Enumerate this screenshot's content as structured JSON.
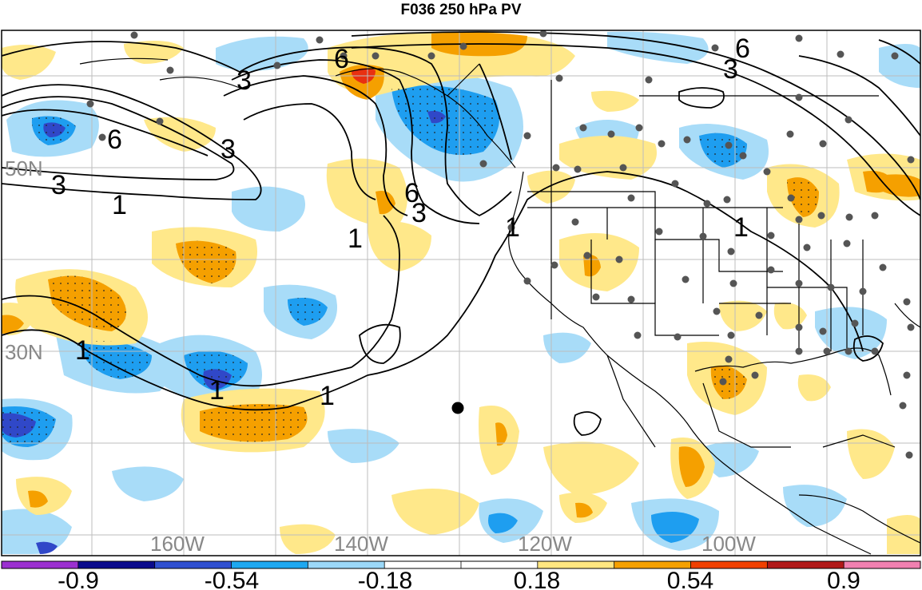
{
  "title": "F036 250 hPa PV",
  "grid": {
    "lat_labels": [
      "50N",
      "30N"
    ],
    "lon_labels": [
      "160W",
      "140W",
      "120W",
      "100W"
    ]
  },
  "contour_levels": [
    "1",
    "3",
    "6"
  ],
  "colorbar": {
    "labels": [
      "-0.9",
      "-0.54",
      "-0.18",
      "0.18",
      "0.54",
      "0.9"
    ],
    "colors": [
      "#9b30d0",
      "#0a0a8c",
      "#3050d0",
      "#1ea8f0",
      "#9bd8f8",
      "#ffffff",
      "#ffffff",
      "#ffe680",
      "#f5a000",
      "#f04000",
      "#b01818",
      "#f080b0"
    ]
  },
  "colors": {
    "light_blue": "#a8dcf8",
    "mid_blue": "#1e9ef0",
    "dark_blue": "#3048c8",
    "light_orange": "#ffe88a",
    "mid_orange": "#f5a000",
    "red": "#e83010",
    "station_dot": "#555555",
    "land_line": "#000000"
  }
}
